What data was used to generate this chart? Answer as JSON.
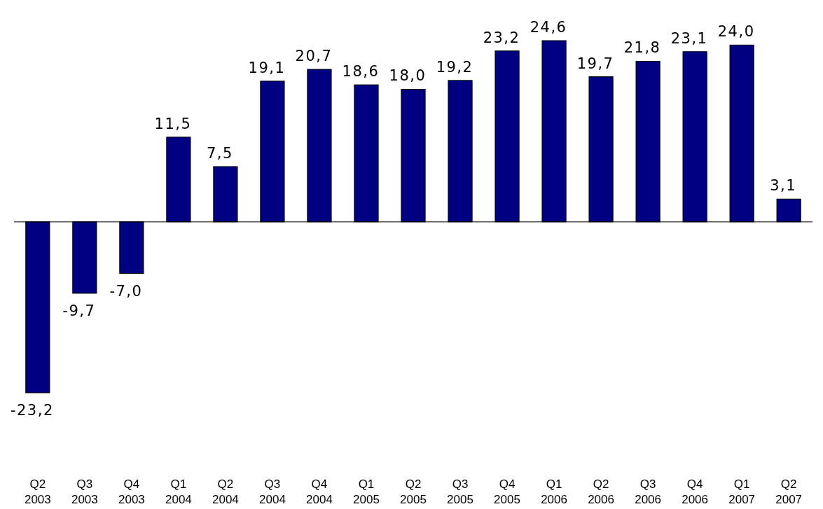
{
  "chart_data": {
    "type": "bar",
    "categories": [
      "Q2 2003",
      "Q3 2003",
      "Q4 2003",
      "Q1 2004",
      "Q2 2004",
      "Q3 2004",
      "Q4 2004",
      "Q1 2005",
      "Q2 2005",
      "Q3 2005",
      "Q4 2005",
      "Q1 2006",
      "Q2 2006",
      "Q3 2006",
      "Q4 2006",
      "Q1 2007",
      "Q2 2007"
    ],
    "values": [
      -23.2,
      -9.7,
      -7.0,
      11.5,
      7.5,
      19.1,
      20.7,
      18.6,
      18.0,
      19.2,
      23.2,
      24.6,
      19.7,
      21.8,
      23.1,
      24.0,
      3.1
    ],
    "value_labels": [
      "-23,2",
      "-9,7",
      "-7,0",
      "11,5",
      "7,5",
      "19,1",
      "20,7",
      "18,6",
      "18,0",
      "19,2",
      "23,2",
      "24,6",
      "19,7",
      "21,8",
      "23,1",
      "24,0",
      "3,1"
    ],
    "color": "#000080"
  }
}
